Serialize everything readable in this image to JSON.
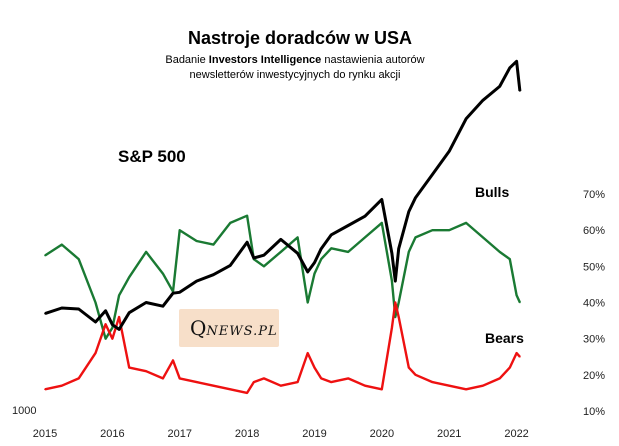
{
  "chart_data": {
    "type": "line",
    "title": "Nastroje doradców w USA",
    "subtitle": {
      "line1_pre": "Badanie ",
      "line1_bold": "Investors Intelligence",
      "line1_post": " nastawienia autorów",
      "line2": "newsletterów  inwestycyjnych do rynku akcji"
    },
    "x": [
      2015.0,
      2015.25,
      2015.5,
      2015.75,
      2015.9,
      2016.0,
      2016.1,
      2016.25,
      2016.5,
      2016.75,
      2016.9,
      2017.0,
      2017.25,
      2017.5,
      2017.75,
      2018.0,
      2018.1,
      2018.25,
      2018.5,
      2018.75,
      2018.9,
      2019.0,
      2019.1,
      2019.25,
      2019.5,
      2019.75,
      2020.0,
      2020.15,
      2020.2,
      2020.25,
      2020.4,
      2020.5,
      2020.75,
      2021.0,
      2021.25,
      2021.5,
      2021.75,
      2021.9,
      2022.0,
      2022.05
    ],
    "series": [
      {
        "name": "S&P 500",
        "label": "S&P 500",
        "color": "#000000",
        "axis": "left",
        "values": [
          2050,
          2110,
          2100,
          1960,
          2080,
          1930,
          1880,
          2060,
          2170,
          2130,
          2270,
          2280,
          2400,
          2470,
          2570,
          2820,
          2650,
          2680,
          2850,
          2700,
          2500,
          2600,
          2750,
          2900,
          3000,
          3100,
          3280,
          2700,
          2400,
          2750,
          3150,
          3300,
          3550,
          3800,
          4150,
          4350,
          4500,
          4700,
          4770,
          4450
        ]
      },
      {
        "name": "Bulls",
        "label": "Bulls",
        "color": "#1a7a33",
        "axis": "right",
        "values": [
          53,
          56,
          52,
          40,
          30,
          33,
          42,
          47,
          54,
          48,
          43,
          60,
          57,
          56,
          62,
          64,
          52,
          50,
          54,
          58,
          40,
          48,
          52,
          55,
          54,
          58,
          62,
          46,
          36,
          40,
          54,
          58,
          60,
          60,
          62,
          58,
          54,
          52,
          42,
          40
        ]
      },
      {
        "name": "Bears",
        "label": "Bears",
        "color": "#ee1111",
        "axis": "right",
        "values": [
          16,
          17,
          19,
          26,
          34,
          30,
          36,
          22,
          21,
          19,
          24,
          19,
          18,
          17,
          16,
          15,
          18,
          19,
          17,
          18,
          26,
          22,
          19,
          18,
          19,
          17,
          16,
          33,
          40,
          36,
          22,
          20,
          18,
          17,
          16,
          17,
          19,
          22,
          26,
          25
        ]
      }
    ],
    "x_ticks": [
      "2015",
      "2016",
      "2017",
      "2018",
      "2019",
      "2020",
      "2021",
      "2022"
    ],
    "left_axis": {
      "label": "1000",
      "ylim": [
        1000,
        5000
      ]
    },
    "right_axis": {
      "ticks": [
        "10%",
        "20%",
        "30%",
        "40%",
        "50%",
        "60%",
        "70%"
      ],
      "ylim": [
        10,
        70
      ]
    },
    "xlim": [
      2015.0,
      2022.6
    ],
    "logo": {
      "q": "Q",
      "rest": "NEWS.PL"
    }
  }
}
